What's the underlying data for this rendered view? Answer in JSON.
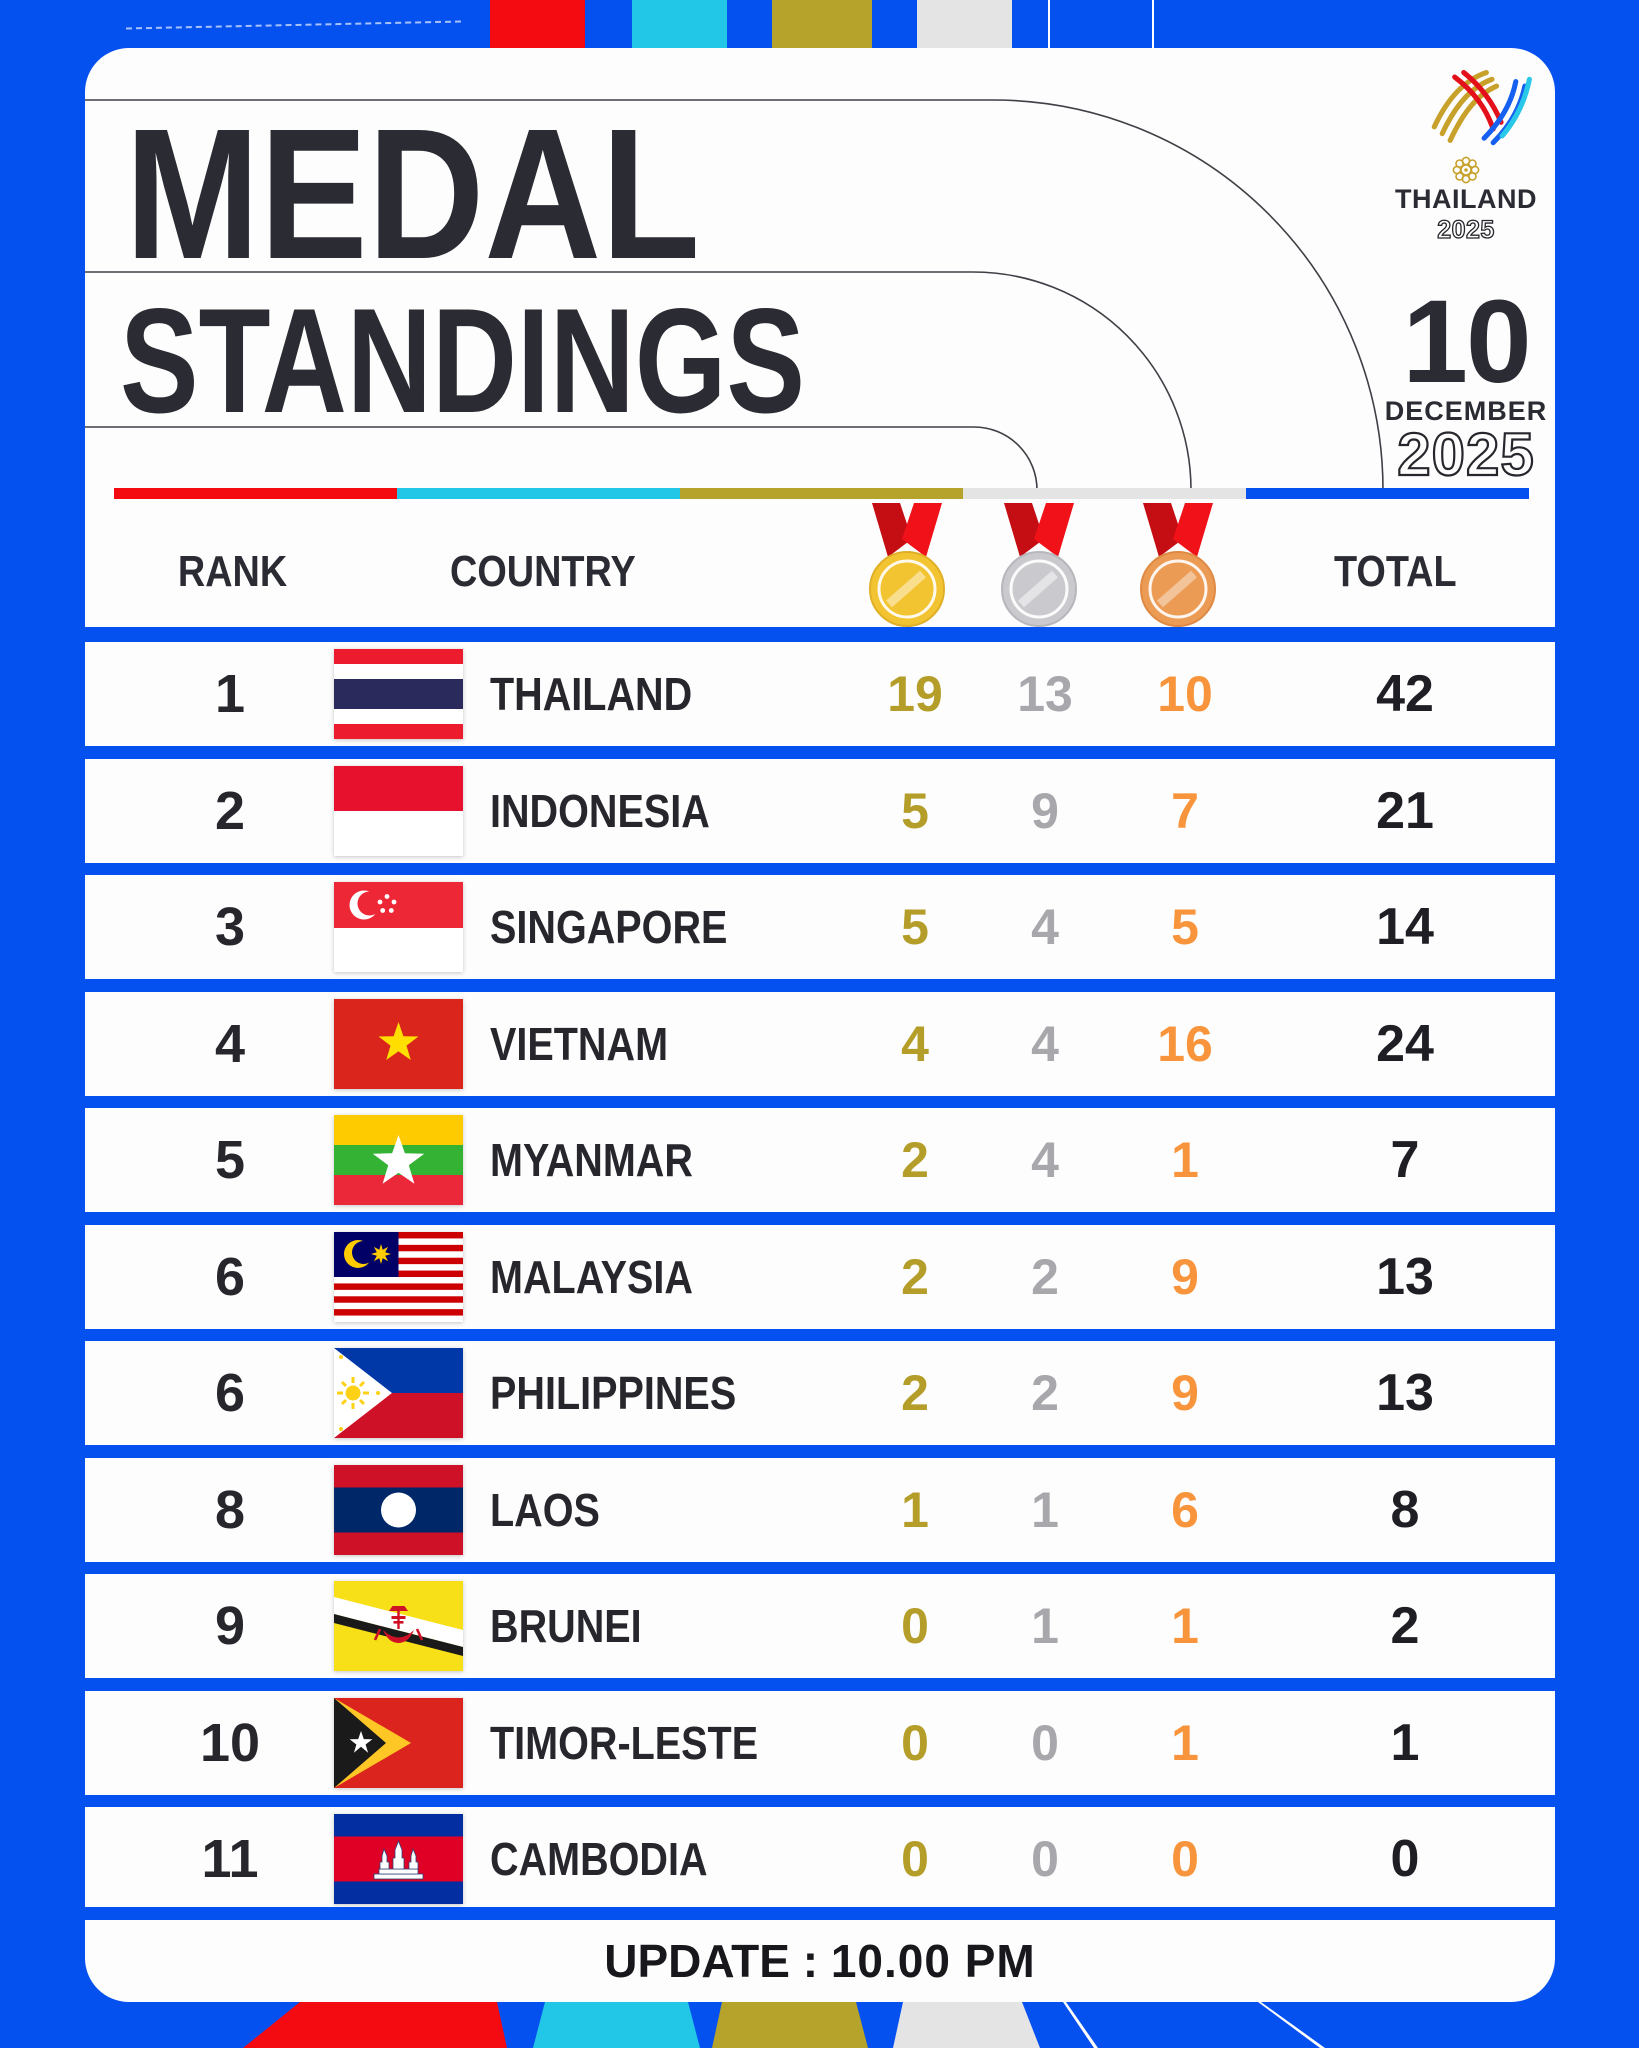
{
  "poster": {
    "title_line1": "MEDAL",
    "title_line2": "STANDINGS",
    "logo": {
      "name": "THAILAND",
      "year": "2025"
    },
    "date": {
      "day": "10",
      "month": "DECEMBER",
      "year": "2025"
    },
    "footer": {
      "label": "UPDATE",
      "separator": ":",
      "time": "10.00 PM"
    }
  },
  "table": {
    "headers": {
      "rank": "RANK",
      "country": "COUNTRY",
      "total": "TOTAL"
    },
    "medal_columns": [
      "gold-medal-icon",
      "silver-medal-icon",
      "bronze-medal-icon"
    ],
    "rows": [
      {
        "rank": "1",
        "country": "THAILAND",
        "flag": "thailand",
        "gold": "19",
        "silver": "13",
        "bronze": "10",
        "total": "42"
      },
      {
        "rank": "2",
        "country": "INDONESIA",
        "flag": "indonesia",
        "gold": "5",
        "silver": "9",
        "bronze": "7",
        "total": "21"
      },
      {
        "rank": "3",
        "country": "SINGAPORE",
        "flag": "singapore",
        "gold": "5",
        "silver": "4",
        "bronze": "5",
        "total": "14"
      },
      {
        "rank": "4",
        "country": "VIETNAM",
        "flag": "vietnam",
        "gold": "4",
        "silver": "4",
        "bronze": "16",
        "total": "24"
      },
      {
        "rank": "5",
        "country": "MYANMAR",
        "flag": "myanmar",
        "gold": "2",
        "silver": "4",
        "bronze": "1",
        "total": "7"
      },
      {
        "rank": "6",
        "country": "MALAYSIA",
        "flag": "malaysia",
        "gold": "2",
        "silver": "2",
        "bronze": "9",
        "total": "13"
      },
      {
        "rank": "6",
        "country": "PHILIPPINES",
        "flag": "philippines",
        "gold": "2",
        "silver": "2",
        "bronze": "9",
        "total": "13"
      },
      {
        "rank": "8",
        "country": "LAOS",
        "flag": "laos",
        "gold": "1",
        "silver": "1",
        "bronze": "6",
        "total": "8"
      },
      {
        "rank": "9",
        "country": "BRUNEI",
        "flag": "brunei",
        "gold": "0",
        "silver": "1",
        "bronze": "1",
        "total": "2"
      },
      {
        "rank": "10",
        "country": "TIMOR-LESTE",
        "flag": "timor_leste",
        "gold": "0",
        "silver": "0",
        "bronze": "1",
        "total": "1"
      },
      {
        "rank": "11",
        "country": "CAMBODIA",
        "flag": "cambodia",
        "gold": "0",
        "silver": "0",
        "bronze": "0",
        "total": "0"
      }
    ]
  },
  "colors": {
    "background_blue": "#0551F0",
    "bar_red": "#F40B12",
    "bar_cyan": "#22C7E7",
    "bar_gold": "#B5A32B",
    "bar_gray": "#E4E4E4",
    "gold_count": "#B49E29",
    "silver_count": "#A7A7AC",
    "bronze_count": "#F8953C",
    "title_dark": "#2B2C33"
  },
  "chart_data": {
    "type": "table",
    "title": "Medal Standings — Thailand 2025 SEA Games, 10 December 2025 (update 10.00 PM)",
    "columns": [
      "Rank",
      "Country",
      "Gold",
      "Silver",
      "Bronze",
      "Total"
    ],
    "rows": [
      [
        1,
        "Thailand",
        19,
        13,
        10,
        42
      ],
      [
        2,
        "Indonesia",
        5,
        9,
        7,
        21
      ],
      [
        3,
        "Singapore",
        5,
        4,
        5,
        14
      ],
      [
        4,
        "Vietnam",
        4,
        4,
        16,
        24
      ],
      [
        5,
        "Myanmar",
        2,
        4,
        1,
        7
      ],
      [
        6,
        "Malaysia",
        2,
        2,
        9,
        13
      ],
      [
        6,
        "Philippines",
        2,
        2,
        9,
        13
      ],
      [
        8,
        "Laos",
        1,
        1,
        6,
        8
      ],
      [
        9,
        "Brunei",
        0,
        1,
        1,
        2
      ],
      [
        10,
        "Timor-Leste",
        0,
        0,
        1,
        1
      ],
      [
        11,
        "Cambodia",
        0,
        0,
        0,
        0
      ]
    ]
  }
}
